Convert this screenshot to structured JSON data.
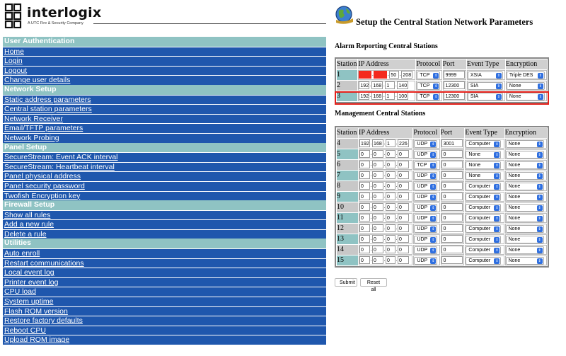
{
  "brand": {
    "name": "interlogix",
    "tagline": "A UTC Fire & Security Company"
  },
  "nav": [
    {
      "title": "User Authentication",
      "items": [
        "Home",
        "Login",
        "Logout",
        "Change user details"
      ]
    },
    {
      "title": "Network Setup",
      "items": [
        "Static address parameters",
        "Central station parameters",
        "Network Receiver",
        "Email/TFTP parameters",
        "Network Probing"
      ]
    },
    {
      "title": "Panel Setup",
      "items": [
        "SecureStream: Event ACK interval",
        "SecureStream: Heartbeat interval",
        "Panel physical address",
        "Panel security password",
        "Twofish Encryption key"
      ]
    },
    {
      "title": "Firewall Setup",
      "items": [
        "Show all rules",
        "Add a new rule",
        "Delete a rule"
      ]
    },
    {
      "title": "Utilities",
      "items": [
        "Auto enroll",
        "Restart communications",
        "Local event log",
        "Printer event log",
        "CPU load",
        "System uptime",
        "Flash ROM version",
        "Restore factory defaults",
        "Reboot CPU",
        "Upload ROM image"
      ]
    }
  ],
  "page": {
    "title": "Setup the Central Station Network Parameters"
  },
  "headers": [
    "Station",
    "IP Address",
    "Protocol",
    "Port",
    "Event Type",
    "Encryption"
  ],
  "alarm": {
    "heading": "Alarm Reporting Central Stations",
    "rows": [
      {
        "station": "1",
        "ip": [
          "",
          "",
          "50",
          "208"
        ],
        "protocol": "TCP",
        "port": "9999",
        "event": "XSIA",
        "encryption": "Triple DES"
      },
      {
        "station": "2",
        "ip": [
          "192",
          "168",
          "1",
          "140"
        ],
        "protocol": "TCP",
        "port": "12300",
        "event": "SIA",
        "encryption": "None"
      },
      {
        "station": "3",
        "ip": [
          "192",
          "168",
          "1",
          "100"
        ],
        "protocol": "TCP",
        "port": "12300",
        "event": "SIA",
        "encryption": "None"
      }
    ]
  },
  "management": {
    "heading": "Management Central Stations",
    "rows": [
      {
        "station": "4",
        "ip": [
          "192",
          "168",
          "1",
          "226"
        ],
        "protocol": "UDP",
        "port": "3001",
        "event": "Computer",
        "encryption": "None"
      },
      {
        "station": "5",
        "ip": [
          "0",
          "0",
          "0",
          "0"
        ],
        "protocol": "UDP",
        "port": "0",
        "event": "None",
        "encryption": "None"
      },
      {
        "station": "6",
        "ip": [
          "0",
          "0",
          "0",
          "0"
        ],
        "protocol": "TCP",
        "port": "0",
        "event": "None",
        "encryption": "None"
      },
      {
        "station": "7",
        "ip": [
          "0",
          "0",
          "0",
          "0"
        ],
        "protocol": "UDP",
        "port": "0",
        "event": "None",
        "encryption": "None"
      },
      {
        "station": "8",
        "ip": [
          "0",
          "0",
          "0",
          "0"
        ],
        "protocol": "UDP",
        "port": "0",
        "event": "Computer",
        "encryption": "None"
      },
      {
        "station": "9",
        "ip": [
          "0",
          "0",
          "0",
          "0"
        ],
        "protocol": "UDP",
        "port": "0",
        "event": "Computer",
        "encryption": "None"
      },
      {
        "station": "10",
        "ip": [
          "0",
          "0",
          "0",
          "0"
        ],
        "protocol": "UDP",
        "port": "0",
        "event": "Computer",
        "encryption": "None"
      },
      {
        "station": "11",
        "ip": [
          "0",
          "0",
          "0",
          "0"
        ],
        "protocol": "UDP",
        "port": "0",
        "event": "Computer",
        "encryption": "None"
      },
      {
        "station": "12",
        "ip": [
          "0",
          "0",
          "0",
          "0"
        ],
        "protocol": "UDP",
        "port": "0",
        "event": "Computer",
        "encryption": "None"
      },
      {
        "station": "13",
        "ip": [
          "0",
          "0",
          "0",
          "0"
        ],
        "protocol": "UDP",
        "port": "0",
        "event": "Computer",
        "encryption": "None"
      },
      {
        "station": "14",
        "ip": [
          "0",
          "0",
          "0",
          "0"
        ],
        "protocol": "UDP",
        "port": "0",
        "event": "Computer",
        "encryption": "None"
      },
      {
        "station": "15",
        "ip": [
          "0",
          "0",
          "0",
          "0"
        ],
        "protocol": "UDP",
        "port": "0",
        "event": "Computer",
        "encryption": "None"
      }
    ]
  },
  "buttons": {
    "submit": "Submit",
    "reset": "Reset all"
  },
  "colors": {
    "nav_section": "#8fc3c3",
    "nav_item": "#1f57ad",
    "highlight": "#e5201a",
    "masked_ip": "#f42a1d"
  }
}
